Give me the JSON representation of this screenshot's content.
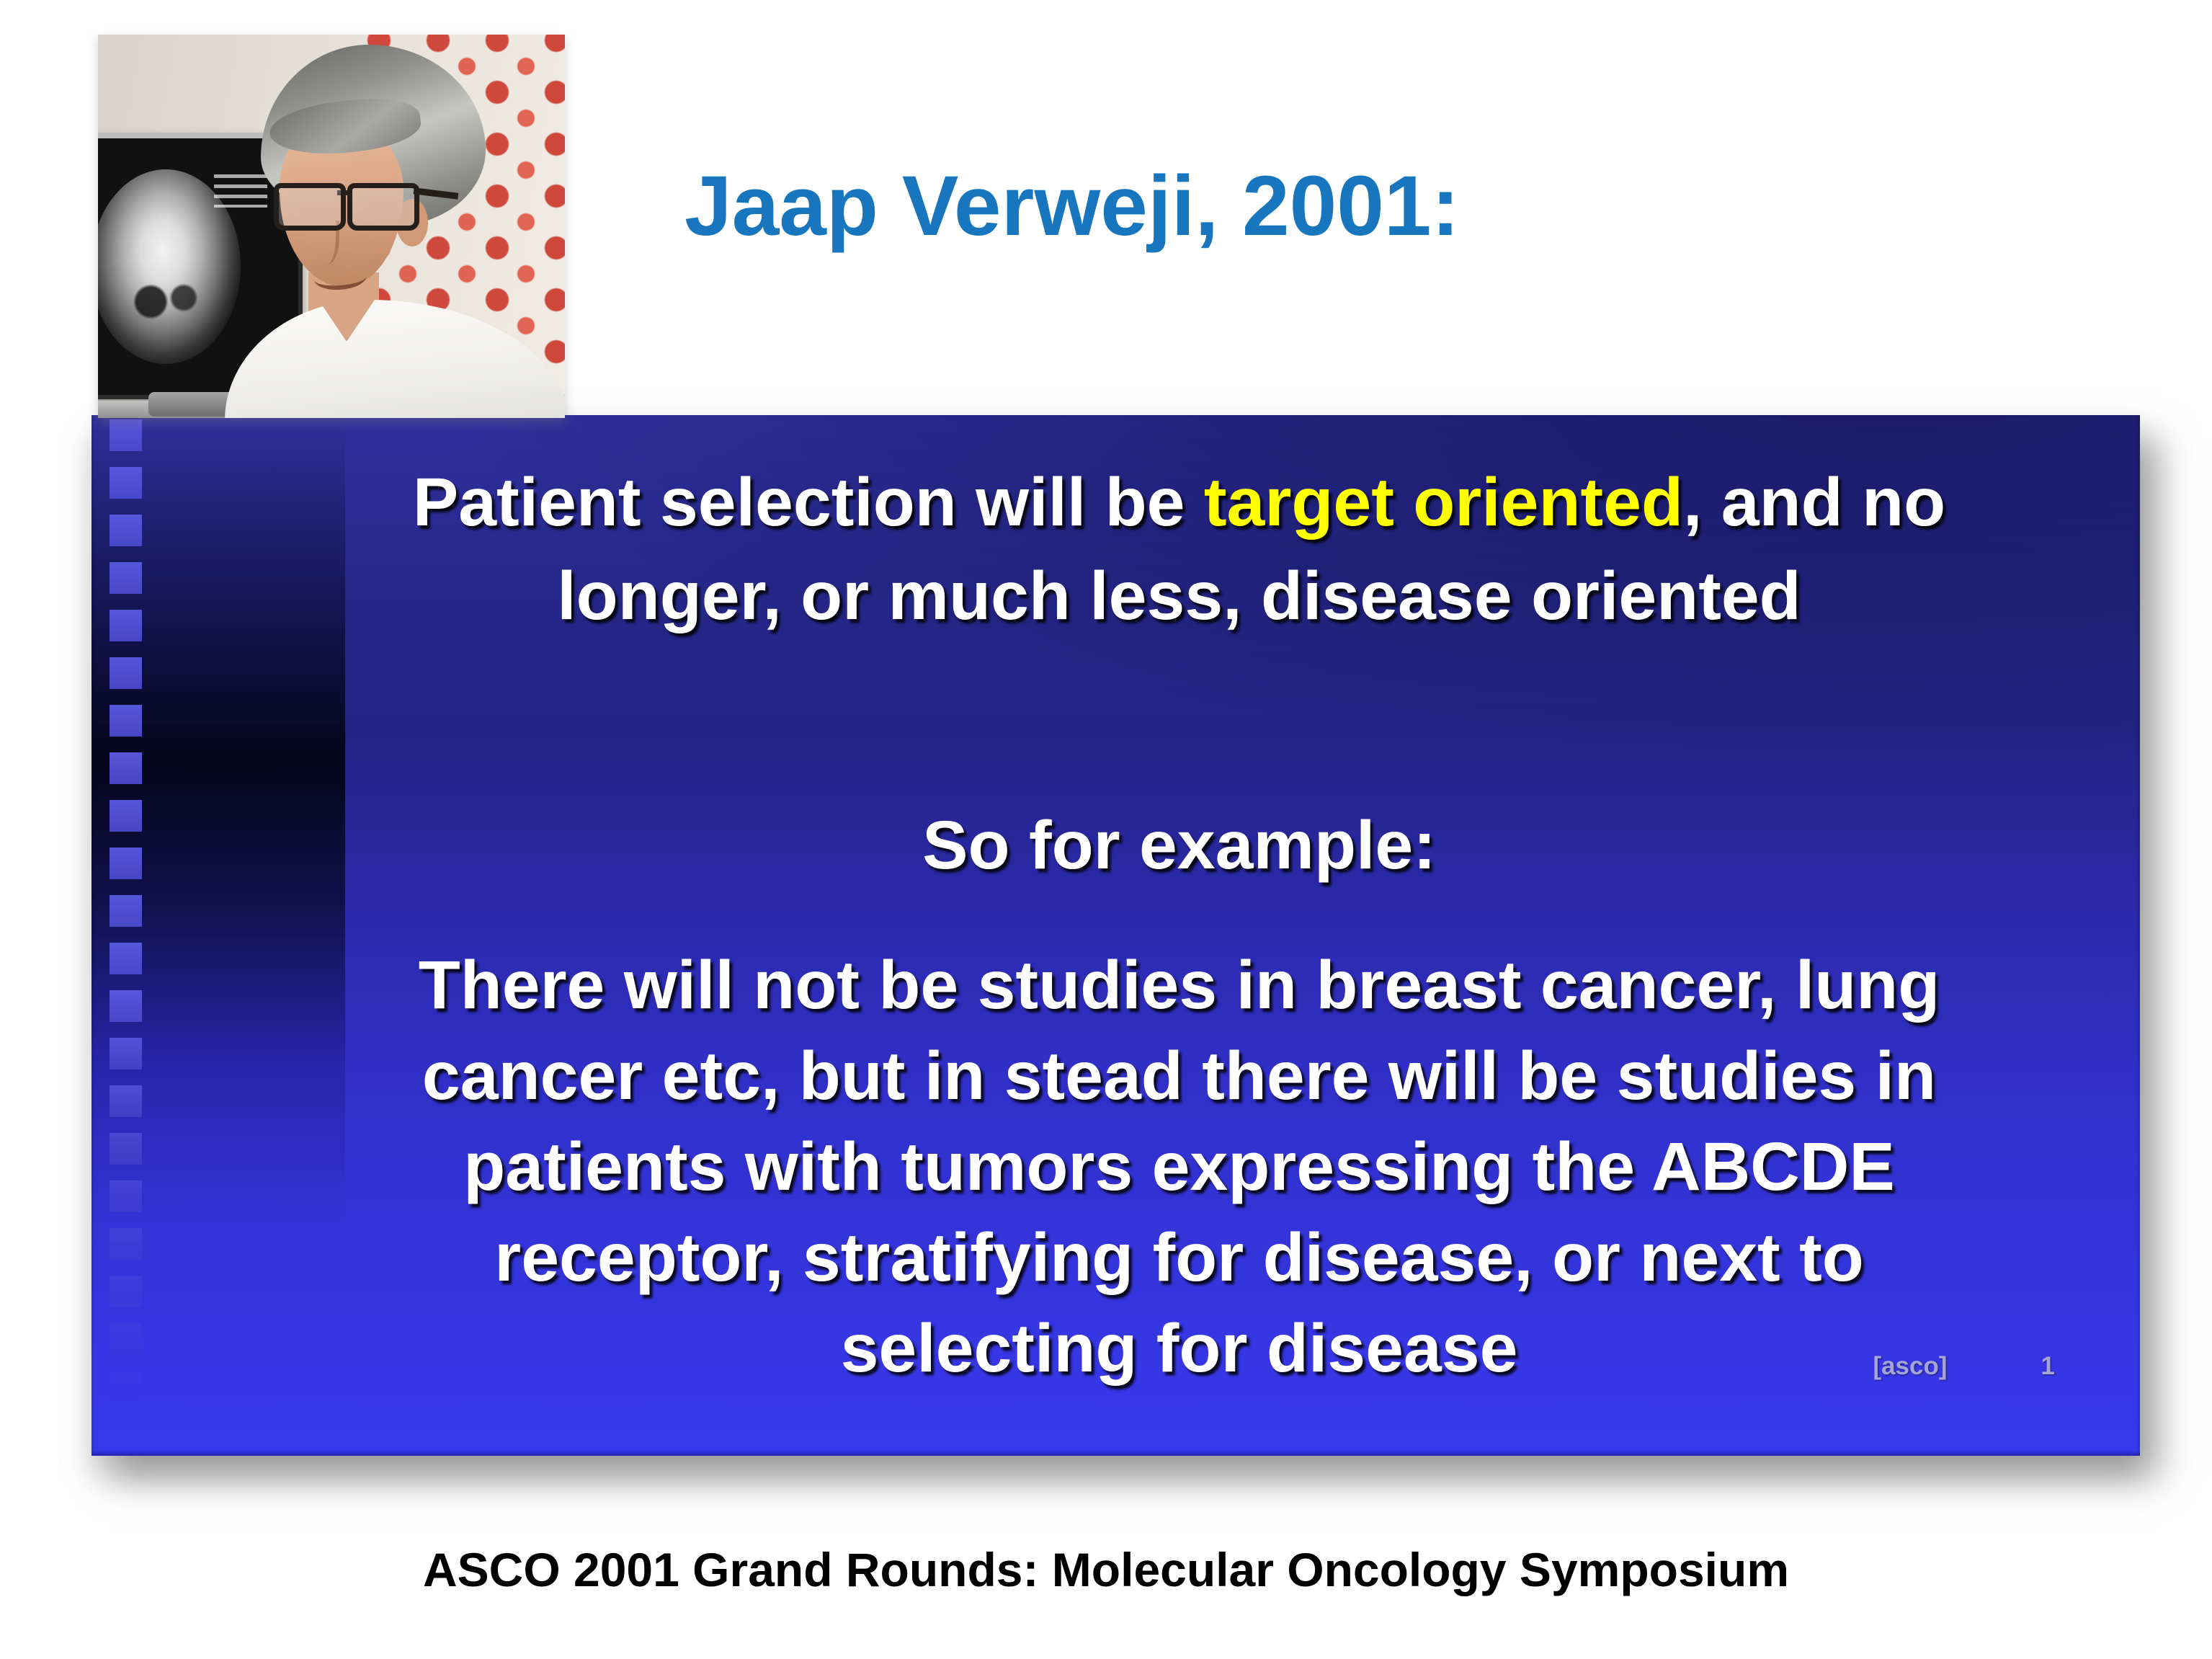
{
  "page": {
    "title": "Jaap Verweji, 2001:",
    "caption": "ASCO 2001 Grand Rounds: Molecular Oncology Symposium"
  },
  "photo": {
    "alt": "Jaap Verweji, gray-haired man with glasses in white coat, beside monitor showing an abdominal CT scan, red polka-dot wall behind"
  },
  "slide": {
    "heading": {
      "line1_pre": "Patient selection will be ",
      "line1_highlight": "target oriented",
      "line1_post": ", and no",
      "line2": "longer, or much less, disease oriented"
    },
    "example_label": "So for example:",
    "body_lines": [
      "There will not be studies in breast cancer, lung",
      "cancer etc, but in stead there will be studies in",
      "patients with tumors expressing the ABCDE",
      "receptor, stratifying for disease, or next to",
      "selecting for disease"
    ],
    "footer_brand": "[asco]",
    "page_number": "1"
  },
  "colors": {
    "title_blue": "#1776BE",
    "highlight_yellow": "#FFFF00",
    "slide_top_blue": "#26288A",
    "slide_bottom_blue": "#3838EE",
    "polka_dot_red": "#CE3B2E"
  }
}
